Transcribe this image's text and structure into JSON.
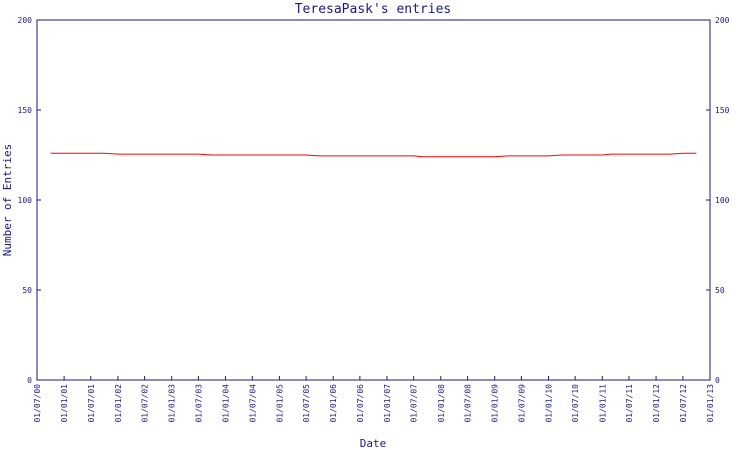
{
  "chart_data": {
    "type": "line",
    "title": "TeresaPask's entries",
    "xlabel": "Date",
    "ylabel": "Number of Entries",
    "ylim": [
      0,
      200
    ],
    "y_ticks": [
      0,
      50,
      100,
      150,
      200
    ],
    "x_tick_labels": [
      "01/07/00",
      "01/01/01",
      "01/07/01",
      "01/01/02",
      "01/07/02",
      "01/01/03",
      "01/07/03",
      "01/01/04",
      "01/07/04",
      "01/01/05",
      "01/07/05",
      "01/01/06",
      "01/07/06",
      "01/01/07",
      "01/07/07",
      "01/01/08",
      "01/07/08",
      "01/01/09",
      "01/07/09",
      "01/01/10",
      "01/07/10",
      "01/01/11",
      "01/07/11",
      "01/01/12",
      "01/07/12",
      "01/01/13"
    ],
    "grid": false,
    "series": [
      {
        "color": "#ff0000",
        "points": [
          {
            "x": "2000-10-01",
            "y": 126
          },
          {
            "x": "2001-10-01",
            "y": 126
          },
          {
            "x": "2002-01-01",
            "y": 125.5
          },
          {
            "x": "2003-07-01",
            "y": 125.5
          },
          {
            "x": "2003-10-01",
            "y": 125
          },
          {
            "x": "2005-07-01",
            "y": 125
          },
          {
            "x": "2005-10-01",
            "y": 124.5
          },
          {
            "x": "2007-07-01",
            "y": 124.5
          },
          {
            "x": "2007-09-01",
            "y": 124
          },
          {
            "x": "2009-01-01",
            "y": 124
          },
          {
            "x": "2009-04-01",
            "y": 124.5
          },
          {
            "x": "2010-01-01",
            "y": 124.5
          },
          {
            "x": "2010-04-01",
            "y": 125
          },
          {
            "x": "2011-01-01",
            "y": 125
          },
          {
            "x": "2011-03-01",
            "y": 125.5
          },
          {
            "x": "2012-04-01",
            "y": 125.5
          },
          {
            "x": "2012-07-01",
            "y": 126
          },
          {
            "x": "2012-10-01",
            "y": 126
          }
        ]
      }
    ]
  },
  "colors": {
    "axis": "#1a1a80",
    "text": "#1a1a80",
    "background": "#ffffff",
    "line": "#ff0000"
  }
}
